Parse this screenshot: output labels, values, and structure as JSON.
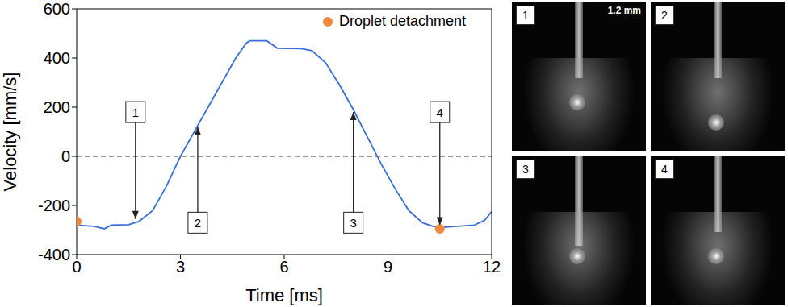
{
  "chart_data": {
    "type": "line",
    "x_label": "Time [ms]",
    "y_label": "Velocity [mm/s]",
    "color": "#3b6fd6",
    "x": [
      0,
      0.5,
      0.8,
      1.0,
      1.5,
      1.8,
      2.2,
      2.6,
      3.0,
      3.4,
      3.8,
      4.2,
      4.6,
      4.9,
      5.0,
      5.5,
      5.8,
      6.5,
      6.8,
      7.2,
      7.6,
      8.0,
      8.4,
      8.8,
      9.2,
      9.6,
      10.0,
      10.3,
      10.5,
      11.0,
      11.5,
      11.8,
      12.0
    ],
    "values": [
      -280,
      -285,
      -295,
      -280,
      -278,
      -265,
      -220,
      -120,
      0,
      100,
      200,
      300,
      400,
      460,
      470,
      470,
      440,
      438,
      430,
      380,
      290,
      190,
      80,
      -30,
      -130,
      -220,
      -270,
      -285,
      -290,
      -285,
      -280,
      -260,
      -225
    ],
    "xlim": [
      0,
      12
    ],
    "xticks": [
      0,
      3,
      6,
      9,
      12
    ],
    "ylim": [
      -400,
      600
    ],
    "yticks": [
      -400,
      -200,
      0,
      200,
      400,
      600
    ],
    "grid": false,
    "legend": "upper right",
    "markers": {
      "name": "Droplet detachment",
      "color": "#f0883e",
      "x": [
        0,
        10.5
      ],
      "y": [
        -265,
        -295
      ]
    },
    "reference_lines": [
      {
        "y": 0,
        "line_style": "dashed"
      }
    ],
    "annotations": [
      {
        "text": "1",
        "x": 1.7,
        "y": 180,
        "arrow_to": -255
      },
      {
        "text": "2",
        "x": 3.5,
        "y": -270,
        "arrow_to": 120
      },
      {
        "text": "3",
        "x": 8.0,
        "y": -270,
        "arrow_to": 180
      },
      {
        "text": "4",
        "x": 10.5,
        "y": 180,
        "arrow_to": -280
      }
    ]
  },
  "images": [
    {
      "label": "1",
      "scale_bar": "1.2 mm"
    },
    {
      "label": "2"
    },
    {
      "label": "3"
    },
    {
      "label": "4"
    }
  ]
}
